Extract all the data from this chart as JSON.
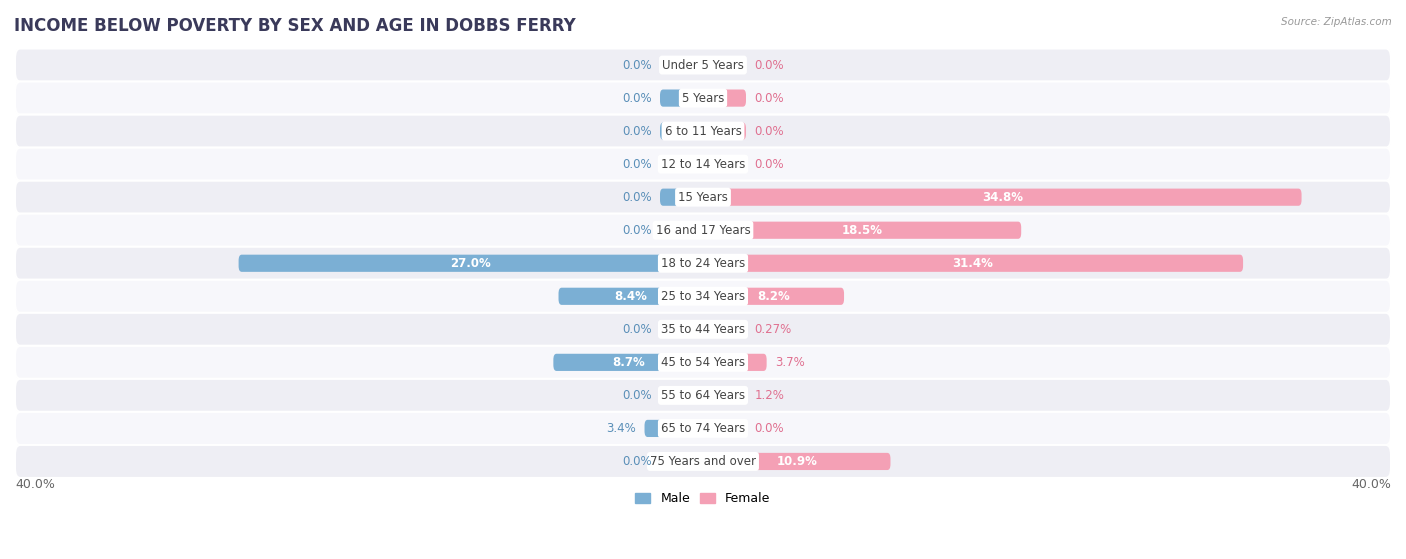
{
  "title": "INCOME BELOW POVERTY BY SEX AND AGE IN DOBBS FERRY",
  "source": "Source: ZipAtlas.com",
  "categories": [
    "Under 5 Years",
    "5 Years",
    "6 to 11 Years",
    "12 to 14 Years",
    "15 Years",
    "16 and 17 Years",
    "18 to 24 Years",
    "25 to 34 Years",
    "35 to 44 Years",
    "45 to 54 Years",
    "55 to 64 Years",
    "65 to 74 Years",
    "75 Years and over"
  ],
  "male": [
    0.0,
    0.0,
    0.0,
    0.0,
    0.0,
    0.0,
    27.0,
    8.4,
    0.0,
    8.7,
    0.0,
    3.4,
    0.0
  ],
  "female": [
    0.0,
    0.0,
    0.0,
    0.0,
    34.8,
    18.5,
    31.4,
    8.2,
    0.27,
    3.7,
    1.2,
    0.0,
    10.9
  ],
  "male_color": "#7bafd4",
  "female_color": "#f4a0b5",
  "male_label_color": "#5a8fb8",
  "female_label_color": "#e07090",
  "row_color_odd": "#eeeef4",
  "row_color_even": "#f7f7fb",
  "xlim": 40.0,
  "legend_male": "Male",
  "legend_female": "Female",
  "title_fontsize": 12,
  "label_fontsize": 8.5,
  "axis_fontsize": 9,
  "bar_height": 0.52,
  "min_bar_stub": 2.5
}
